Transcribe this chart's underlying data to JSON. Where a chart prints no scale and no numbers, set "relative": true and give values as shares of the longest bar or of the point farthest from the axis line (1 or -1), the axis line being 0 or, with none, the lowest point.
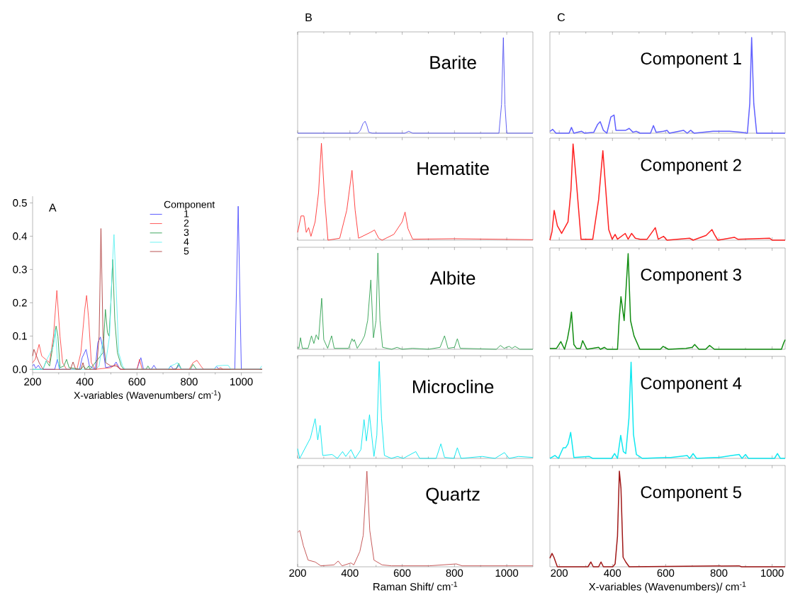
{
  "chart_data": [
    {
      "type": "line",
      "xlabel": "X-variables (Wavenumbers/ cm$^{-1}$)",
      "annotations": [
        "A"
      ],
      "legend_title": "Component",
      "legend": "top right",
      "xlim": [
        200,
        1080
      ],
      "xticks": [
        200,
        400,
        600,
        800,
        1000
      ],
      "ylim": [
        -0.01,
        0.52
      ],
      "yticks": [
        {
          "value": 0,
          "label": "0.0"
        },
        {
          "value": 0.1,
          "label": "0.1"
        },
        {
          "value": 0.2,
          "label": "0.2"
        },
        {
          "value": 0.3,
          "label": "0.3"
        },
        {
          "value": 0.4,
          "label": "0.4"
        },
        {
          "value": 0.5,
          "label": "0.5"
        }
      ],
      "series": [
        {
          "name": "1",
          "color": "#4a4aff",
          "x": [
            200,
            205,
            212,
            222,
            232,
            285,
            295,
            303,
            380,
            390,
            405,
            418,
            440,
            450,
            460,
            470,
            480,
            510,
            520,
            535,
            600,
            615,
            625,
            655,
            665,
            675,
            720,
            730,
            740,
            752,
            760,
            770,
            895,
            905,
            915,
            975,
            988,
            1000,
            1080
          ],
          "values": [
            0.01,
            0.015,
            0.003,
            0.012,
            0,
            0,
            0.03,
            0,
            0,
            0.035,
            0.06,
            0.01,
            0,
            0.08,
            0.097,
            0.06,
            0.005,
            0.01,
            0.022,
            0,
            0,
            0.035,
            0,
            0,
            0.012,
            0,
            0,
            0.01,
            0,
            0.003,
            0.012,
            0,
            0,
            0.008,
            0,
            0,
            0.49,
            0,
            0
          ]
        },
        {
          "name": "2",
          "color": "#ff4a4a",
          "x": [
            200,
            210,
            225,
            235,
            250,
            265,
            280,
            293,
            305,
            315,
            330,
            370,
            385,
            400,
            407,
            415,
            425,
            440,
            500,
            520,
            535,
            600,
            610,
            620,
            800,
            815,
            830,
            845,
            855,
            910,
            920,
            930,
            1080
          ],
          "values": [
            0.02,
            0.03,
            0.075,
            0.04,
            0.03,
            0.02,
            0.1,
            0.237,
            0.1,
            0.02,
            0,
            0,
            0.05,
            0.18,
            0.222,
            0.15,
            0.02,
            0,
            0.005,
            0.015,
            0,
            0,
            0.03,
            0,
            0,
            0.02,
            0.027,
            0.01,
            0,
            0,
            0.005,
            0,
            0
          ]
        },
        {
          "name": "3",
          "color": "#2e9e4e",
          "x": [
            200,
            240,
            252,
            265,
            280,
            290,
            297,
            305,
            320,
            330,
            340,
            385,
            395,
            405,
            415,
            420,
            470,
            479,
            487,
            493,
            500,
            507,
            515,
            525,
            540,
            550,
            635,
            642,
            650,
            750,
            760,
            770,
            805,
            815,
            828,
            1080
          ],
          "values": [
            0,
            0,
            0.025,
            0.01,
            0.08,
            0.13,
            0.1,
            0.005,
            0.01,
            0.03,
            0.005,
            0,
            0.01,
            0,
            0.01,
            0,
            0.05,
            0.18,
            0.11,
            0.1,
            0.2,
            0.33,
            0.15,
            0.05,
            0.01,
            0,
            0,
            0.01,
            0,
            0,
            0.018,
            0,
            0,
            0.015,
            0,
            0
          ]
        },
        {
          "name": "4",
          "color": "#5ff0f0",
          "x": [
            200,
            240,
            255,
            265,
            280,
            287,
            295,
            305,
            440,
            455,
            470,
            480,
            495,
            505,
            512,
            520,
            530,
            545,
            555,
            720,
            728,
            745,
            755,
            770,
            895,
            905,
            930,
            950,
            960,
            1070,
            1078
          ],
          "values": [
            0,
            0,
            0.03,
            0.045,
            0.07,
            0.12,
            0.03,
            0,
            0,
            0.01,
            0.09,
            0.02,
            0.1,
            0.3,
            0.405,
            0.25,
            0.05,
            0.01,
            0,
            0,
            0.01,
            0.015,
            0.02,
            0,
            0,
            0.01,
            0.012,
            0.012,
            0,
            0,
            0.01
          ]
        },
        {
          "name": "5",
          "color": "#b04040",
          "x": [
            200,
            205,
            215,
            225,
            240,
            345,
            355,
            365,
            385,
            393,
            400,
            445,
            455,
            462,
            470,
            480,
            500,
            520,
            540,
            1080
          ],
          "values": [
            0.04,
            0.06,
            0.04,
            0.02,
            0,
            0,
            0.022,
            0,
            0,
            0.02,
            0,
            0,
            0.1,
            0.423,
            0.1,
            0.02,
            0.01,
            0.01,
            0,
            0
          ]
        }
      ]
    },
    {
      "type": "line",
      "relative": true,
      "title": "Barite",
      "annotations": [
        "B"
      ],
      "xlim": [
        200,
        1100
      ],
      "xticks": [
        200,
        400,
        600,
        800,
        1000
      ],
      "tick_labels": false,
      "series": [
        {
          "color": "#4f4ff0",
          "x": [
            200,
            430,
            440,
            450,
            458,
            465,
            472,
            485,
            610,
            625,
            640,
            970,
            980,
            987,
            993,
            1000,
            1100
          ],
          "values": [
            0,
            0,
            0.03,
            0.1,
            0.125,
            0.08,
            0.01,
            0,
            0,
            0.02,
            0,
            0,
            0.3,
            1,
            0.3,
            0,
            0
          ]
        }
      ]
    },
    {
      "type": "line",
      "relative": true,
      "title": "Hematite",
      "xlim": [
        200,
        1100
      ],
      "xticks": [
        200,
        400,
        600,
        800,
        1000
      ],
      "tick_labels": false,
      "series": [
        {
          "color": "#ff3030",
          "x": [
            200,
            213,
            224,
            233,
            242,
            251,
            267,
            280,
            291,
            303,
            316,
            361,
            388,
            408,
            420,
            433,
            478,
            494,
            510,
            523,
            568,
            600,
            611,
            622,
            640,
            800,
            1100
          ],
          "values": [
            0.08,
            0.25,
            0.25,
            0.08,
            0.13,
            0.04,
            0.19,
            0.49,
            1,
            0.44,
            0,
            0.02,
            0.31,
            0.72,
            0.31,
            0.02,
            0.08,
            0.105,
            0.02,
            0,
            0.06,
            0.19,
            0.29,
            0.12,
            0.01,
            0.015,
            0.005
          ]
        }
      ]
    },
    {
      "type": "line",
      "relative": true,
      "title": "Albite",
      "xlim": [
        200,
        1100
      ],
      "xticks": [
        200,
        400,
        600,
        800,
        1000
      ],
      "tick_labels": false,
      "series": [
        {
          "color": "#30a050",
          "x": [
            200,
            205,
            211,
            218,
            240,
            253,
            262,
            271,
            280,
            292,
            300,
            315,
            330,
            340,
            395,
            408,
            413,
            417,
            428,
            445,
            456,
            468,
            480,
            490,
            500,
            507,
            515,
            525,
            560,
            580,
            600,
            640,
            700,
            745,
            762,
            775,
            800,
            811,
            822,
            960,
            976,
            990,
            1009,
            1020,
            1032,
            1050,
            1100
          ],
          "values": [
            0.02,
            0.01,
            0.12,
            0.01,
            0.01,
            0.14,
            0.06,
            0.15,
            0.1,
            0.53,
            0.1,
            0.01,
            0.14,
            0.01,
            0.01,
            0.11,
            0.08,
            0.1,
            0.01,
            0.08,
            0.14,
            0.3,
            0.72,
            0.12,
            0.3,
            1,
            0.3,
            0.02,
            0,
            0.02,
            0,
            0.01,
            0,
            0.02,
            0.14,
            0.01,
            0.02,
            0.11,
            0.01,
            0,
            0.04,
            0.01,
            0.03,
            0.01,
            0.03,
            0,
            0
          ]
        }
      ]
    },
    {
      "type": "line",
      "relative": true,
      "title": "Microcline",
      "xlim": [
        200,
        1100
      ],
      "xticks": [
        200,
        400,
        600,
        800,
        1000
      ],
      "tick_labels": false,
      "series": [
        {
          "color": "#00e5ee",
          "x": [
            200,
            208,
            249,
            267,
            277,
            286,
            296,
            332,
            352,
            372,
            384,
            404,
            420,
            442,
            454,
            463,
            475,
            492,
            503,
            512,
            521,
            532,
            559,
            582,
            604,
            652,
            667,
            730,
            748,
            762,
            798,
            811,
            825,
            906,
            955,
            991,
            1009,
            1045,
            1100
          ],
          "values": [
            0.1,
            0,
            0.21,
            0.41,
            0.19,
            0.34,
            0.03,
            0.04,
            0,
            0.07,
            0.02,
            0.09,
            0,
            0.09,
            0.4,
            0.18,
            0.45,
            0.02,
            0.24,
            1,
            0.41,
            0.03,
            0,
            0.02,
            0,
            0.07,
            0,
            0,
            0.15,
            0.01,
            0,
            0.11,
            0,
            0.02,
            0,
            0.06,
            0,
            0.02,
            0.01
          ]
        }
      ]
    },
    {
      "type": "line",
      "relative": true,
      "title": "Quartz",
      "xlabel": "Raman Shift/ cm$^{-1}$",
      "xlim": [
        200,
        1100
      ],
      "xticks": [
        200,
        400,
        600,
        800,
        1000
      ],
      "tick_labels": "x",
      "series": [
        {
          "color": "#c04848",
          "x": [
            200,
            208,
            222,
            240,
            267,
            289,
            339,
            355,
            370,
            404,
            415,
            438,
            451,
            465,
            476,
            492,
            523,
            559,
            703,
            807,
            829,
            1100
          ],
          "values": [
            0.36,
            0.38,
            0.22,
            0.07,
            0.05,
            0.01,
            0.02,
            0.06,
            0.01,
            0.04,
            0.02,
            0.16,
            0.33,
            1,
            0.38,
            0.07,
            0.02,
            0.01,
            0.01,
            0.03,
            0.01,
            0.01
          ]
        }
      ]
    },
    {
      "type": "line",
      "relative": true,
      "title": "Component 1",
      "annotations": [
        "C"
      ],
      "xlim": [
        165,
        1049
      ],
      "xticks": [
        200,
        400,
        600,
        800,
        1000
      ],
      "tick_labels": false,
      "series": [
        {
          "color": "#6060ff",
          "x": [
            165,
            171,
            175,
            188,
            237,
            246,
            255,
            284,
            295,
            330,
            344,
            354,
            366,
            379,
            394,
            406,
            413,
            450,
            463,
            477,
            490,
            503,
            543,
            554,
            564,
            592,
            605,
            614,
            667,
            681,
            694,
            707,
            778,
            840,
            885,
            907,
            916,
            923,
            931,
            942,
            1049
          ],
          "values": [
            0.02,
            0.03,
            0.04,
            0,
            0,
            0.06,
            0,
            0.02,
            0,
            0.01,
            0.09,
            0.12,
            0.03,
            0,
            0.17,
            0.19,
            0.03,
            0.03,
            0.05,
            0.01,
            0.02,
            0,
            0,
            0.08,
            0.01,
            0.02,
            0.03,
            0,
            0.03,
            0,
            0.03,
            0,
            0.02,
            0.02,
            0.01,
            0,
            0.31,
            1,
            0.31,
            0,
            0
          ]
        }
      ]
    },
    {
      "type": "line",
      "relative": true,
      "title": "Component 2",
      "xlim": [
        165,
        1049
      ],
      "xticks": [
        200,
        400,
        600,
        800,
        1000
      ],
      "tick_labels": false,
      "series": [
        {
          "color": "#ff2020",
          "x": [
            165,
            173,
            181,
            193,
            209,
            233,
            244,
            252,
            264,
            282,
            326,
            348,
            364,
            375,
            386,
            399,
            410,
            419,
            448,
            459,
            472,
            486,
            503,
            530,
            561,
            572,
            592,
            605,
            690,
            703,
            752,
            774,
            783,
            796,
            858,
            871,
            991,
            1000,
            1049
          ],
          "values": [
            0,
            0.09,
            0.31,
            0.15,
            0.07,
            0.19,
            0.52,
            1,
            0.62,
            0.01,
            0.01,
            0.42,
            0.93,
            0.52,
            0.11,
            0.01,
            0.06,
            0.01,
            0.07,
            0.01,
            0.07,
            0.02,
            0.01,
            0.01,
            0.13,
            0.01,
            0.04,
            0,
            0.02,
            0,
            0.05,
            0.11,
            0.06,
            0,
            0.03,
            0.01,
            0.02,
            0,
            0
          ]
        }
      ]
    },
    {
      "type": "line",
      "relative": true,
      "title": "Component 3",
      "xlim": [
        165,
        1049
      ],
      "xticks": [
        200,
        400,
        600,
        800,
        1000
      ],
      "tick_labels": false,
      "series": [
        {
          "color": "#108c10",
          "x": [
            165,
            190,
            206,
            220,
            231,
            240,
            246,
            255,
            265,
            280,
            288,
            304,
            348,
            355,
            370,
            380,
            419,
            425,
            432,
            444,
            459,
            468,
            481,
            503,
            580,
            590,
            610,
            676,
            700,
            709,
            725,
            750,
            765,
            783,
            1035,
            1044,
            1049
          ],
          "values": [
            0.01,
            0.01,
            0.08,
            0,
            0.11,
            0.25,
            0.39,
            0.05,
            0.01,
            0.01,
            0.09,
            0,
            0.02,
            0,
            0.02,
            0,
            0,
            0.3,
            0.55,
            0.3,
            1,
            0.3,
            0.14,
            0,
            0,
            0.03,
            0,
            0.01,
            0.02,
            0.05,
            0,
            0,
            0.04,
            0,
            0,
            0.07,
            0.1
          ]
        }
      ]
    },
    {
      "type": "line",
      "relative": true,
      "title": "Component 4",
      "xlim": [
        165,
        1049
      ],
      "xticks": [
        200,
        400,
        600,
        800,
        1000
      ],
      "tick_labels": false,
      "series": [
        {
          "color": "#10e8f0",
          "x": [
            165,
            184,
            197,
            215,
            224,
            233,
            243,
            255,
            313,
            326,
            397,
            408,
            419,
            431,
            441,
            450,
            462,
            470,
            479,
            490,
            502,
            512,
            601,
            619,
            681,
            690,
            703,
            716,
            783,
            800,
            847,
            876,
            887,
            900,
            911,
            1009,
            1020,
            1031,
            1049
          ],
          "values": [
            0,
            0.03,
            0,
            0.11,
            0.11,
            0.15,
            0.27,
            0.01,
            0.02,
            0,
            0,
            0.05,
            0,
            0.24,
            0.07,
            0.05,
            0.42,
            1,
            0.25,
            0.04,
            0.02,
            0,
            0.01,
            0.01,
            0.03,
            0,
            0.05,
            0,
            0.01,
            0.01,
            0.03,
            0.04,
            0,
            0.04,
            0,
            0,
            0.05,
            0,
            0
          ]
        }
      ]
    },
    {
      "type": "line",
      "relative": true,
      "title": "Component 5",
      "xlabel": "X-variables (Wavenumbers)/ cm$^{-1}$",
      "xlim": [
        165,
        1049
      ],
      "xticks": [
        200,
        400,
        600,
        800,
        1000
      ],
      "tick_labels": "x",
      "series": [
        {
          "color": "#a01818",
          "x": [
            165,
            173,
            180,
            193,
            308,
            319,
            328,
            348,
            357,
            366,
            401,
            410,
            419,
            426,
            432,
            440,
            450,
            463,
            876,
            885,
            1049
          ],
          "values": [
            0.09,
            0.14,
            0.1,
            0,
            0,
            0.05,
            0,
            0,
            0.05,
            0,
            0,
            0.03,
            0.32,
            1,
            0.82,
            0.1,
            0.05,
            0,
            0.01,
            0,
            0
          ]
        }
      ]
    }
  ]
}
